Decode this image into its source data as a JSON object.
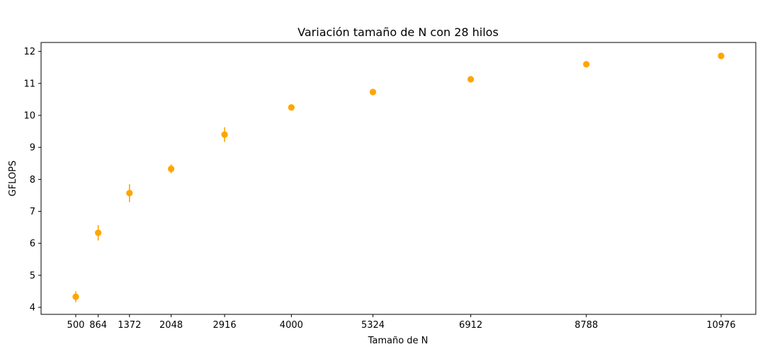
{
  "chart_data": {
    "type": "scatter",
    "title": "Variación tamaño de N con 28 hilos",
    "xlabel": "Tamaño de N",
    "ylabel": "GFLOPS",
    "xlim": [
      -63,
      11539
    ],
    "ylim": [
      3.78,
      12.28
    ],
    "xticks": [
      500,
      864,
      1372,
      2048,
      2916,
      4000,
      5324,
      6912,
      8788,
      10976
    ],
    "xtick_labels": [
      "500",
      "864",
      "1372",
      "2048",
      "2916",
      "4000",
      "5324",
      "6912",
      "8788",
      "10976"
    ],
    "yticks": [
      4,
      5,
      6,
      7,
      8,
      9,
      10,
      11,
      12
    ],
    "ytick_labels": [
      "4",
      "5",
      "6",
      "7",
      "8",
      "9",
      "10",
      "11",
      "12"
    ],
    "grid": false,
    "marker_color": "#ffa500",
    "points": [
      {
        "x": 500,
        "y": 4.33,
        "err": 0.17
      },
      {
        "x": 864,
        "y": 6.33,
        "err": 0.24
      },
      {
        "x": 1372,
        "y": 7.57,
        "err": 0.28
      },
      {
        "x": 2048,
        "y": 8.33,
        "err": 0.14
      },
      {
        "x": 2916,
        "y": 9.4,
        "err": 0.23
      },
      {
        "x": 4000,
        "y": 10.25,
        "err": 0.04
      },
      {
        "x": 5324,
        "y": 10.73,
        "err": 0.04
      },
      {
        "x": 6912,
        "y": 11.13,
        "err": 0.08
      },
      {
        "x": 8788,
        "y": 11.6,
        "err": 0.03
      },
      {
        "x": 10976,
        "y": 11.86,
        "err": 0.04
      }
    ]
  }
}
